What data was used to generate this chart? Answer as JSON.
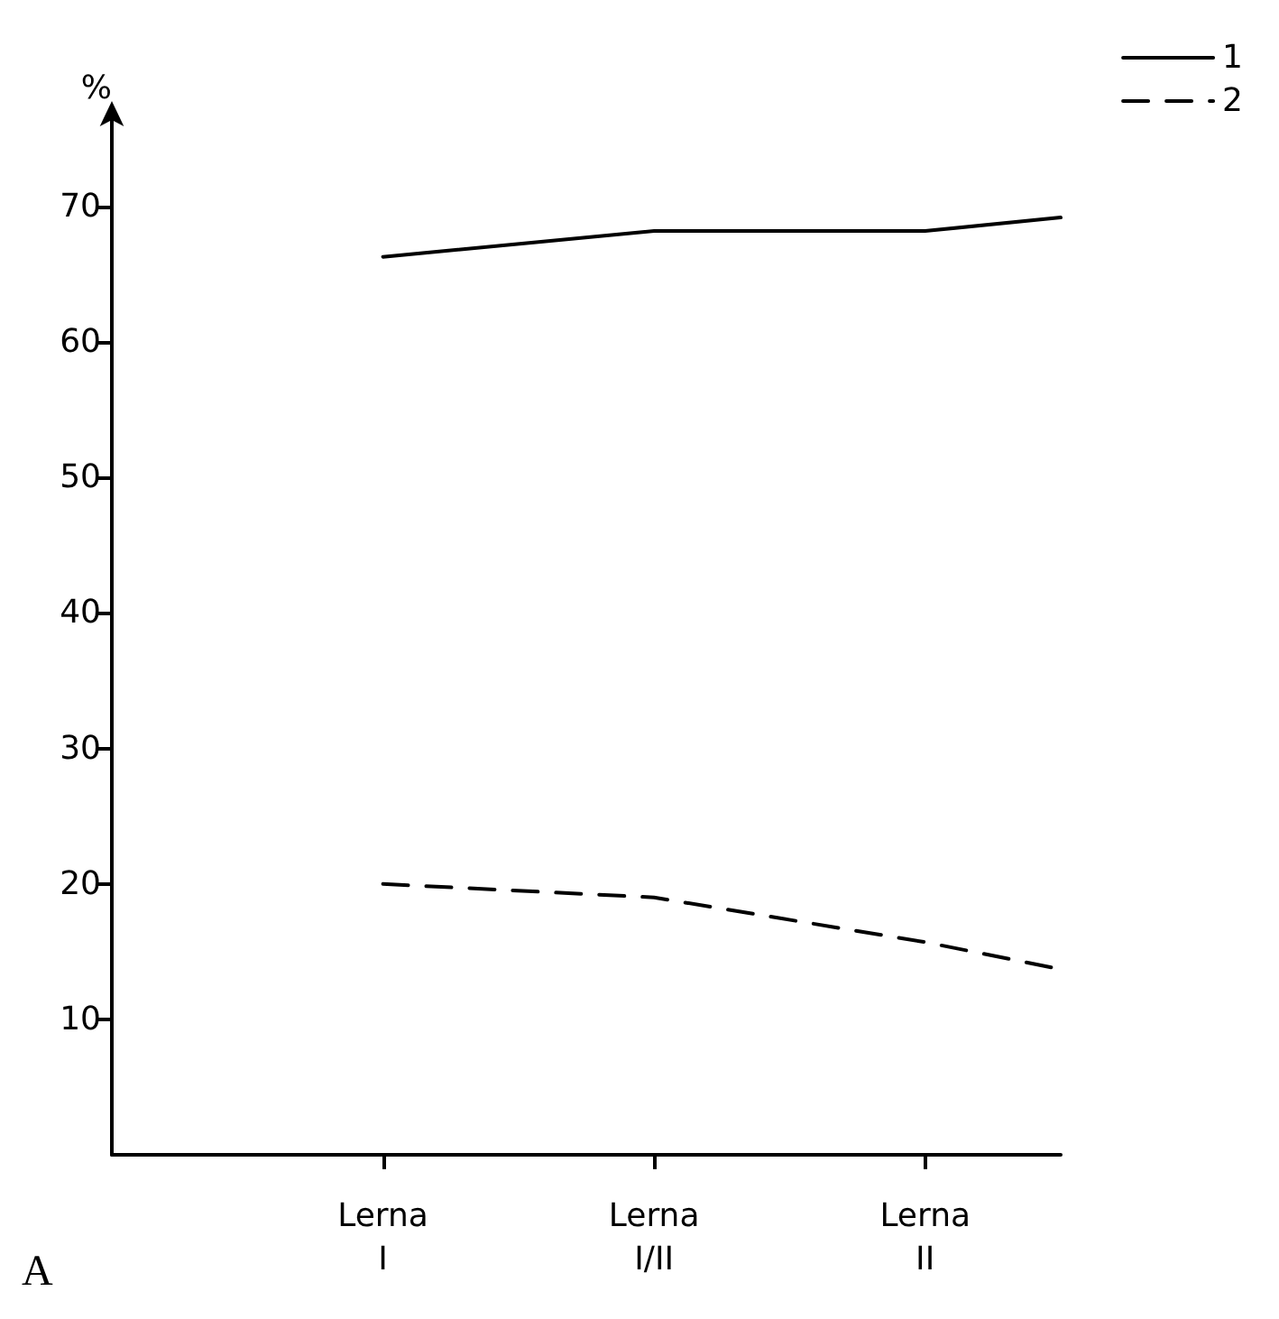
{
  "chart_data": {
    "type": "line",
    "ylabel": "%",
    "annotations": [
      "A"
    ],
    "categories": [
      null,
      null,
      "Lerna\nI",
      null,
      "Lerna\nI/II",
      null,
      "Lerna\nII",
      null
    ],
    "ylim": [
      0,
      77
    ],
    "yticks": [
      10,
      20,
      30,
      40,
      50,
      60,
      70
    ],
    "series": [
      {
        "name": "1",
        "color": "#000000",
        "line_style": "solid",
        "values": [
          null,
          null,
          66.3,
          null,
          68.2,
          null,
          68.2,
          69.2
        ]
      },
      {
        "name": "2",
        "color": "#000000",
        "line_style": "dashed",
        "values": [
          null,
          null,
          20,
          null,
          19,
          null,
          15.7,
          13.7
        ]
      }
    ],
    "legend": "top right",
    "grid": false,
    "marker": "none"
  }
}
